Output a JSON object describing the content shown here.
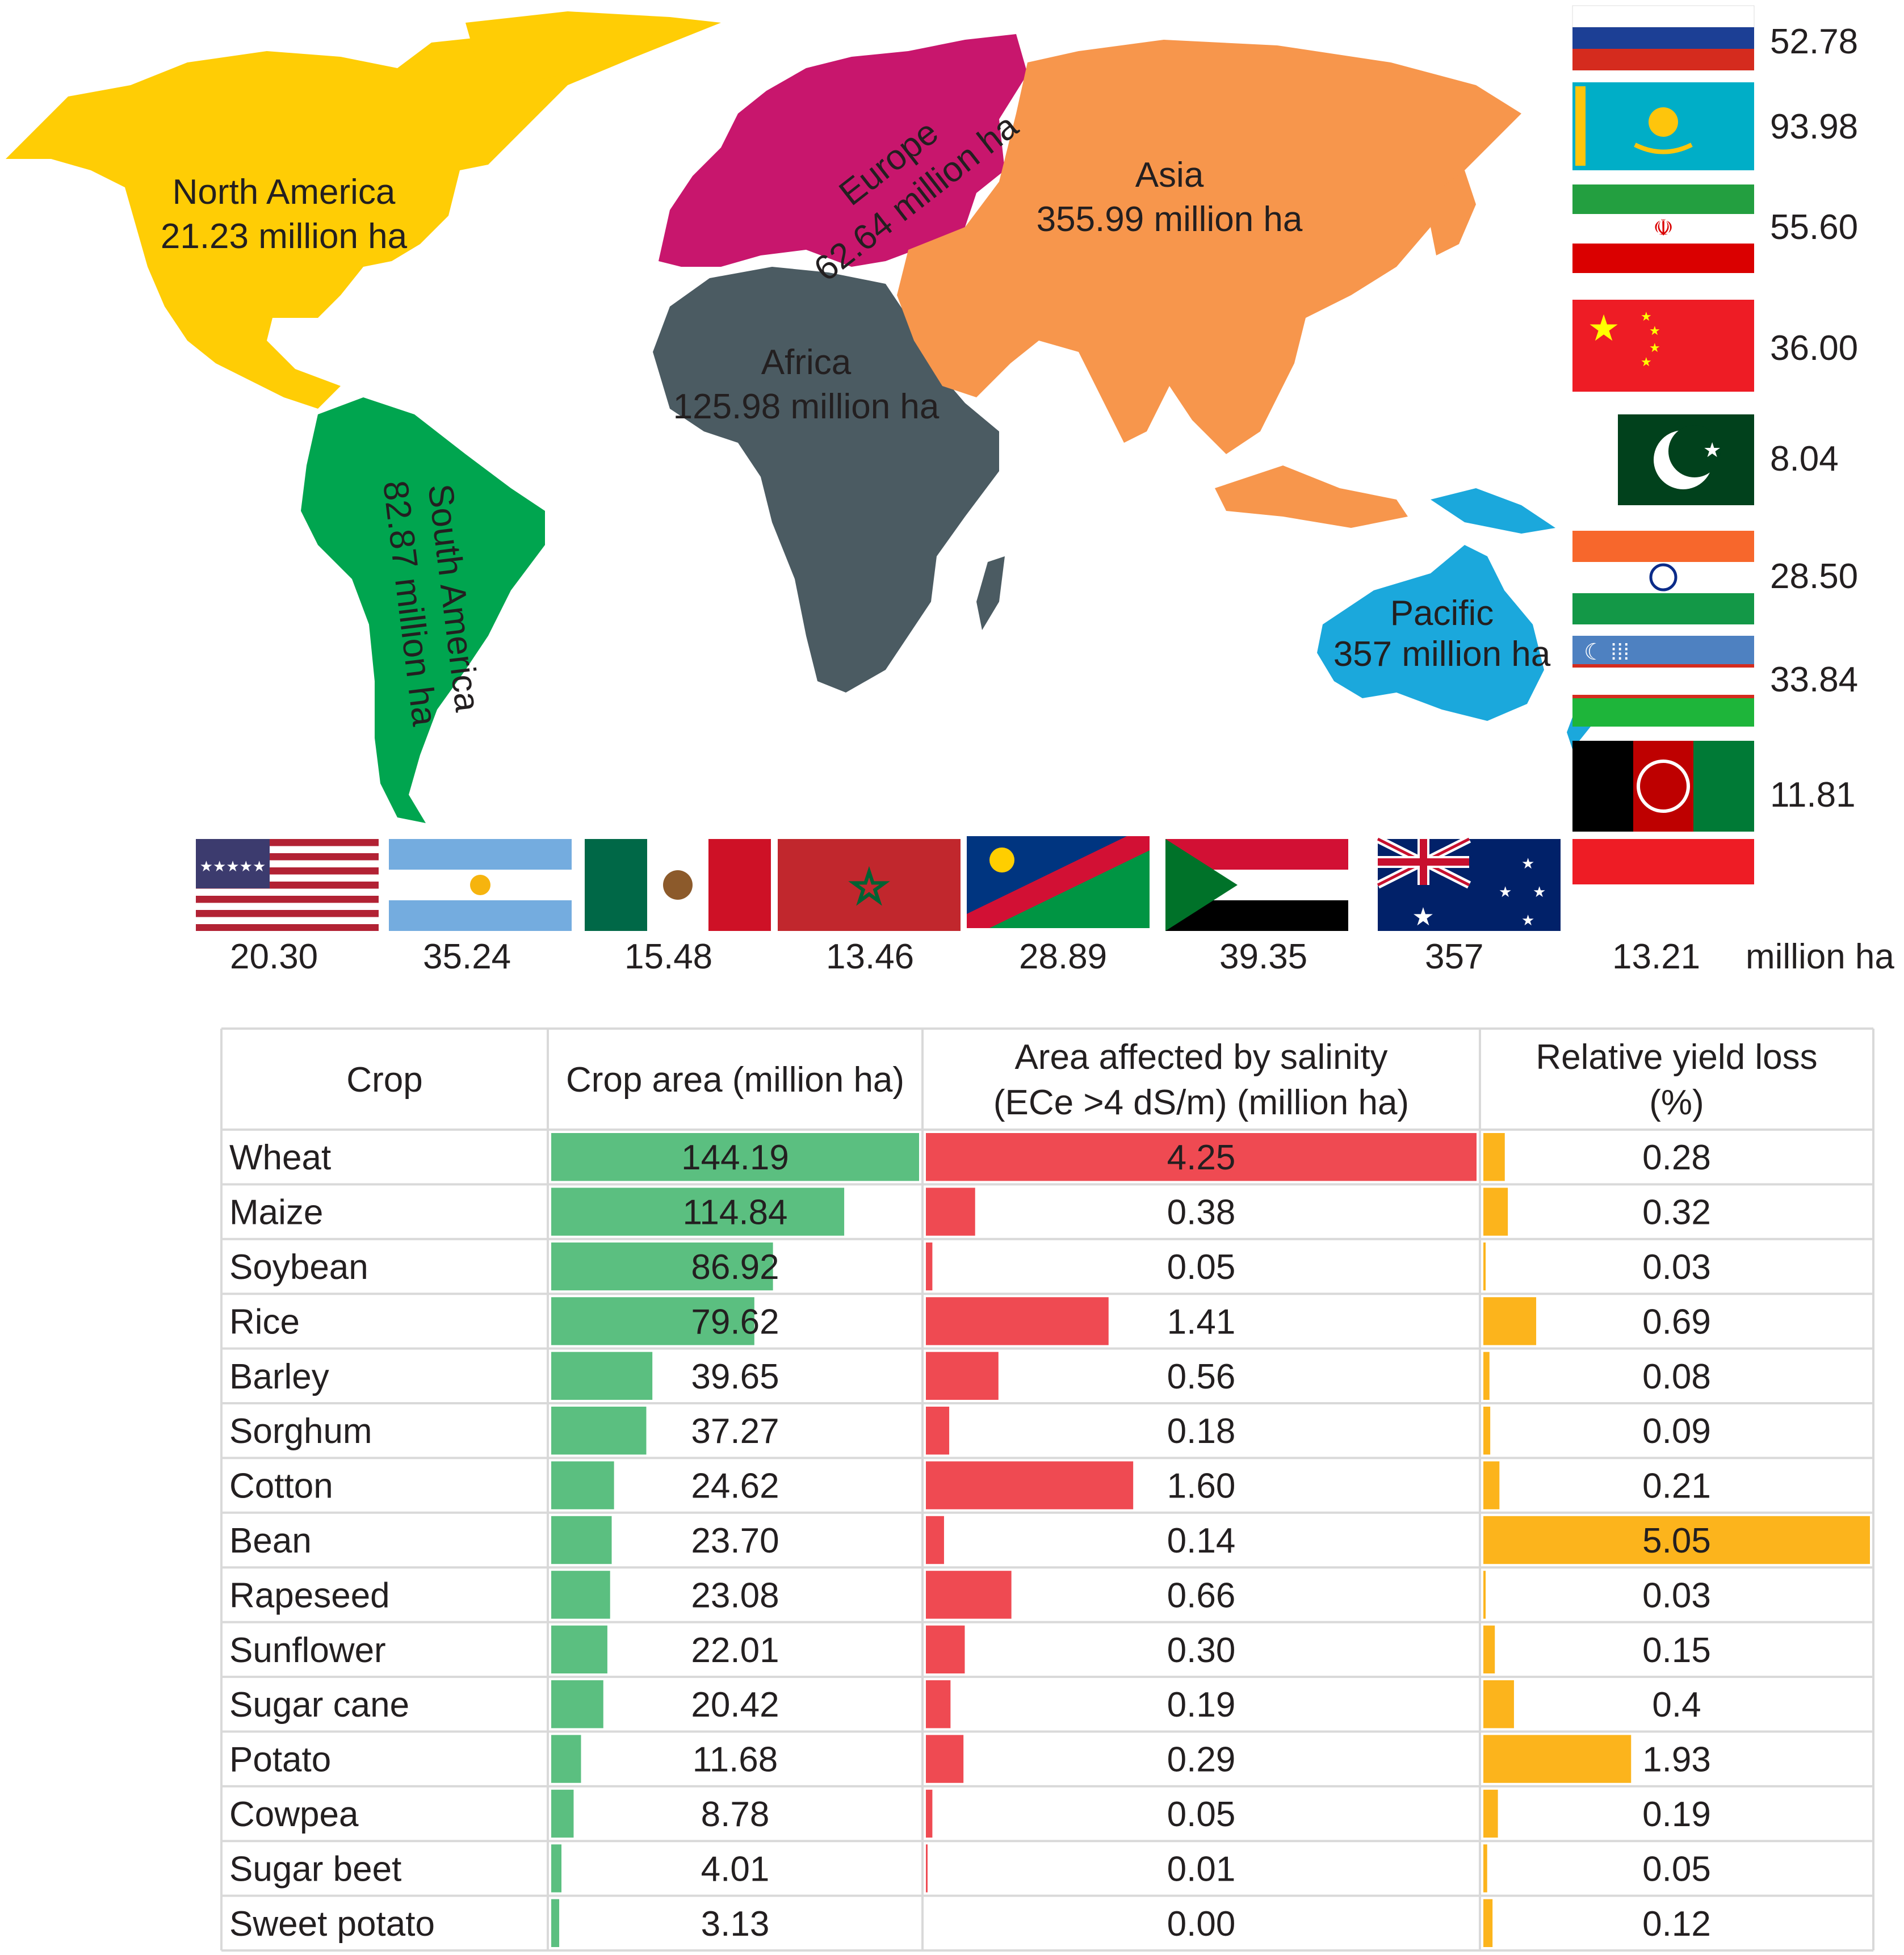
{
  "regions": [
    {
      "id": "north-america",
      "name": "North America",
      "area": "21.23 million ha",
      "color": "#ffcd05"
    },
    {
      "id": "south-america",
      "name": "South America",
      "area": "82.87 million ha",
      "color": "#00a54f"
    },
    {
      "id": "europe",
      "name": "Europe",
      "area": "62.64 million ha",
      "color": "#c8166d"
    },
    {
      "id": "africa",
      "name": "Africa",
      "area": "125.98 million ha",
      "color": "#4b5b62"
    },
    {
      "id": "asia",
      "name": "Asia",
      "area": "355.99 million ha",
      "color": "#f7964c"
    },
    {
      "id": "pacific",
      "name": "Pacific",
      "area": "357 million ha",
      "color": "#1ba8dc"
    }
  ],
  "country_flags_right": [
    {
      "country": "Russia",
      "value": "52.78"
    },
    {
      "country": "Kazakhstan",
      "value": "93.98"
    },
    {
      "country": "Iran",
      "value": "55.60"
    },
    {
      "country": "China",
      "value": "36.00"
    },
    {
      "country": "Pakistan",
      "value": "8.04"
    },
    {
      "country": "India",
      "value": "28.50"
    },
    {
      "country": "Uzbekistan",
      "value": "33.84"
    },
    {
      "country": "Afghanistan",
      "value": "11.81"
    }
  ],
  "country_flags_bottom": [
    {
      "country": "United States",
      "value": "20.30"
    },
    {
      "country": "Argentina",
      "value": "35.24"
    },
    {
      "country": "Mexico",
      "value": "15.48"
    },
    {
      "country": "Morocco",
      "value": "13.46"
    },
    {
      "country": "Namibia",
      "value": "28.89"
    },
    {
      "country": "Sudan",
      "value": "39.35"
    },
    {
      "country": "Australia",
      "value": "357"
    },
    {
      "country": "Peru",
      "value": "13.21"
    }
  ],
  "unit_label": "million ha",
  "chart_data": {
    "type": "table",
    "columns": [
      "Crop",
      "Crop area (million ha)",
      "Area affected by salinity (ECe >4 dS/m) (million ha)",
      "Relative yield loss (%)"
    ],
    "header_lines": {
      "crop": [
        "Crop"
      ],
      "area": [
        "Crop area (million ha)"
      ],
      "salinity": [
        "Area affected by salinity",
        "(ECe >4 dS/m) (million ha)"
      ],
      "yield": [
        "Relative yield loss",
        "(%)"
      ]
    },
    "bar_colors": {
      "area": "#5bbf80",
      "salinity": "#ef4a52",
      "yield": "#fcb41c"
    },
    "rows": [
      {
        "crop": "Wheat",
        "area": "144.19",
        "salinity": "4.25",
        "yield": "0.28"
      },
      {
        "crop": "Maize",
        "area": "114.84",
        "salinity": "0.38",
        "yield": "0.32"
      },
      {
        "crop": "Soybean",
        "area": "86.92",
        "salinity": "0.05",
        "yield": "0.03"
      },
      {
        "crop": "Rice",
        "area": "79.62",
        "salinity": "1.41",
        "yield": "0.69"
      },
      {
        "crop": "Barley",
        "area": "39.65",
        "salinity": "0.56",
        "yield": "0.08"
      },
      {
        "crop": "Sorghum",
        "area": "37.27",
        "salinity": "0.18",
        "yield": "0.09"
      },
      {
        "crop": "Cotton",
        "area": "24.62",
        "salinity": "1.60",
        "yield": "0.21"
      },
      {
        "crop": "Bean",
        "area": "23.70",
        "salinity": "0.14",
        "yield": "5.05"
      },
      {
        "crop": "Rapeseed",
        "area": "23.08",
        "salinity": "0.66",
        "yield": "0.03"
      },
      {
        "crop": "Sunflower",
        "area": "22.01",
        "salinity": "0.30",
        "yield": "0.15"
      },
      {
        "crop": "Sugar cane",
        "area": "20.42",
        "salinity": "0.19",
        "yield": "0.4"
      },
      {
        "crop": "Potato",
        "area": "11.68",
        "salinity": "0.29",
        "yield": "1.93"
      },
      {
        "crop": "Cowpea",
        "area": "8.78",
        "salinity": "0.05",
        "yield": "0.19"
      },
      {
        "crop": "Sugar beet",
        "area": "4.01",
        "salinity": "0.01",
        "yield": "0.05"
      },
      {
        "crop": "Sweet potato",
        "area": "3.13",
        "salinity": "0.00",
        "yield": "0.12"
      }
    ]
  }
}
